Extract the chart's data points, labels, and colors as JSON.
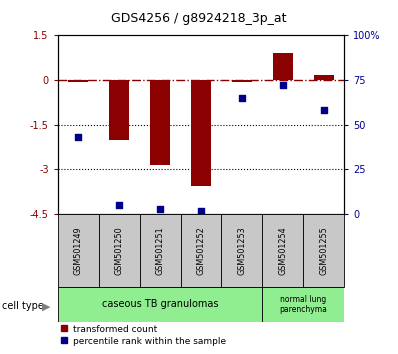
{
  "title": "GDS4256 / g8924218_3p_at",
  "samples": [
    "GSM501249",
    "GSM501250",
    "GSM501251",
    "GSM501252",
    "GSM501253",
    "GSM501254",
    "GSM501255"
  ],
  "red_values": [
    -0.05,
    -2.0,
    -2.85,
    -3.55,
    -0.05,
    0.9,
    0.18
  ],
  "blue_values": [
    43,
    5,
    3,
    2,
    65,
    72,
    58
  ],
  "ylim_left": [
    -4.5,
    1.5
  ],
  "ylim_right": [
    0,
    100
  ],
  "left_ticks": [
    1.5,
    0,
    -1.5,
    -3,
    -4.5
  ],
  "right_ticks": [
    100,
    75,
    50,
    25,
    0
  ],
  "hlines": [
    -1.5,
    -3.0
  ],
  "red_color": "#8B0000",
  "blue_color": "#00008B",
  "bar_width": 0.5,
  "marker_size": 25,
  "cell_type1_label": "caseous TB granulomas",
  "cell_type2_label": "normal lung\nparenchyma",
  "cell_color": "#90EE90",
  "sample_box_color": "#c8c8c8",
  "legend_label1": "transformed count",
  "legend_label2": "percentile rank within the sample",
  "cell_type_text": "cell type"
}
